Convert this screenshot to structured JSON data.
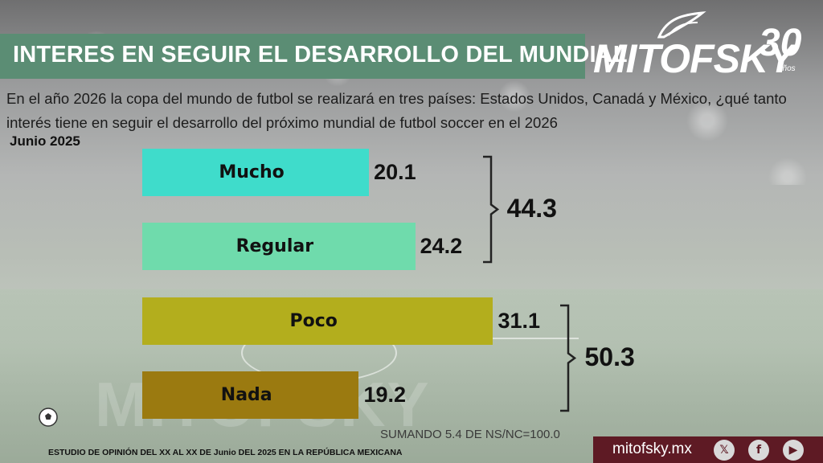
{
  "header": {
    "title": "INTERES EN SEGUIR EL DESARROLLO DEL MUNDIAL",
    "logo_text": "MITOFSKY",
    "logo_years": "30",
    "logo_years_label": "años"
  },
  "question": "En el año 2026 la copa del mundo de futbol se realizará en tres países:  Estados Unidos, Canadá y México, ¿qué tanto interés tiene en seguir el desarrollo del próximo mundial de futbol soccer en el 2026",
  "date_label": "Junio 2025",
  "chart_data": {
    "type": "bar",
    "orientation": "horizontal",
    "categories": [
      "Mucho",
      "Regular",
      "Poco",
      "Nada"
    ],
    "values": [
      20.1,
      24.2,
      31.1,
      19.2
    ],
    "value_labels": [
      "20.1",
      "24.2",
      "31.1",
      "19.2"
    ],
    "colors": [
      "#3fdccb",
      "#6fdbac",
      "#b3ae1d",
      "#9b7a10"
    ],
    "groups": [
      {
        "members": [
          "Mucho",
          "Regular"
        ],
        "total": "44.3"
      },
      {
        "members": [
          "Poco",
          "Nada"
        ],
        "total": "50.3"
      }
    ],
    "xlim": [
      0,
      35
    ],
    "title": "",
    "xlabel": "",
    "ylabel": "",
    "grid": false,
    "legend": "none"
  },
  "note": "SUMANDO 5.4 DE NS/NC=100.0",
  "watermark": "MITOFSKY",
  "footer": {
    "study": "ESTUDIO DE OPINIÓN DEL XX AL XX DE Junio DEL 2025 EN LA REPÚBLICA MEXICANA",
    "website": "mitofsky.mx",
    "social_icons": [
      "x-icon",
      "facebook-icon",
      "youtube-icon"
    ],
    "social_glyphs": [
      "𝕏",
      "f",
      "▶"
    ]
  }
}
